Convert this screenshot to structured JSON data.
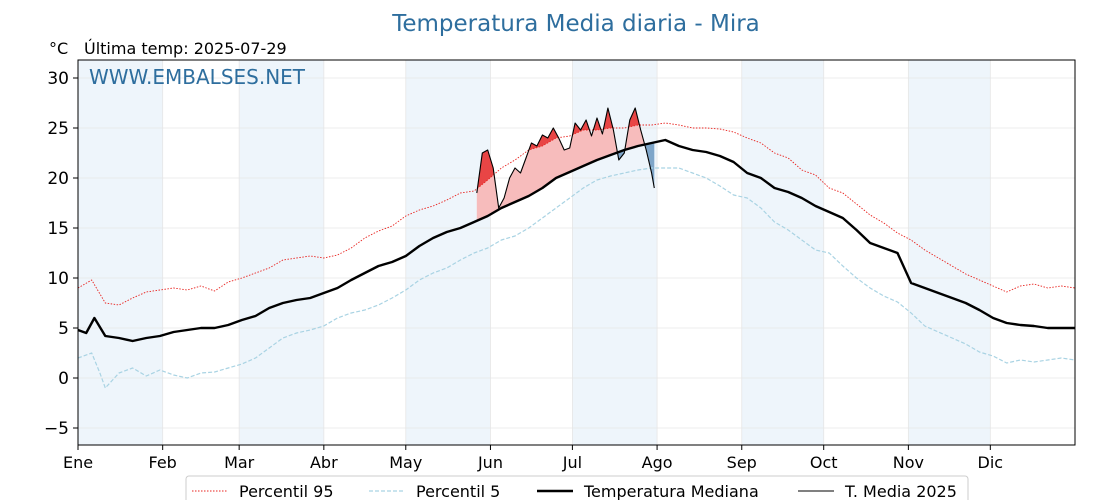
{
  "chart_data": {
    "type": "line",
    "title": "Temperatura Media diaria - Mira",
    "unit_label": "°C",
    "last_temp_label": "Última temp: 2025-07-29",
    "watermark": "WWW.EMBALSES.NET",
    "xlim": [
      0,
      365
    ],
    "ylim": [
      -6.7,
      31.8
    ],
    "grid": true,
    "legend_position": "bottom-center",
    "y_ticks": [
      {
        "value": -5,
        "label": "−5"
      },
      {
        "value": 0,
        "label": "0"
      },
      {
        "value": 5,
        "label": "5"
      },
      {
        "value": 10,
        "label": "10"
      },
      {
        "value": 15,
        "label": "15"
      },
      {
        "value": 20,
        "label": "20"
      },
      {
        "value": 25,
        "label": "25"
      },
      {
        "value": 30,
        "label": "30"
      }
    ],
    "months": [
      {
        "label": "Ene",
        "day": 0
      },
      {
        "label": "Feb",
        "day": 31
      },
      {
        "label": "Mar",
        "day": 59
      },
      {
        "label": "Abr",
        "day": 90
      },
      {
        "label": "May",
        "day": 120
      },
      {
        "label": "Jun",
        "day": 151
      },
      {
        "label": "Jul",
        "day": 181
      },
      {
        "label": "Ago",
        "day": 212
      },
      {
        "label": "Sep",
        "day": 243
      },
      {
        "label": "Oct",
        "day": 273
      },
      {
        "label": "Nov",
        "day": 304
      },
      {
        "label": "Dic",
        "day": 334
      }
    ],
    "shaded_months": [
      [
        0,
        31
      ],
      [
        59,
        90
      ],
      [
        120,
        151
      ],
      [
        181,
        212
      ],
      [
        243,
        273
      ],
      [
        304,
        334
      ]
    ],
    "colors": {
      "p95": "#e8231f",
      "p5": "#a9d3e3",
      "median": "#000000",
      "current": "#000000",
      "above_fill": "#f7bcbc",
      "above_strong": "#e84545",
      "below_fill": "#7fa6c9",
      "shade": "#eef5fb",
      "title": "#2e6e9e"
    },
    "series": [
      {
        "name": "Percentil 95",
        "style": "dotted",
        "points": [
          [
            0,
            9
          ],
          [
            5,
            9.8
          ],
          [
            10,
            7.5
          ],
          [
            15,
            7.3
          ],
          [
            20,
            8
          ],
          [
            25,
            8.6
          ],
          [
            30,
            8.8
          ],
          [
            35,
            9
          ],
          [
            40,
            8.8
          ],
          [
            45,
            9.2
          ],
          [
            50,
            8.7
          ],
          [
            55,
            9.6
          ],
          [
            60,
            10
          ],
          [
            65,
            10.5
          ],
          [
            70,
            11
          ],
          [
            75,
            11.8
          ],
          [
            80,
            12
          ],
          [
            85,
            12.2
          ],
          [
            90,
            12
          ],
          [
            95,
            12.3
          ],
          [
            100,
            13
          ],
          [
            105,
            14
          ],
          [
            110,
            14.7
          ],
          [
            115,
            15.2
          ],
          [
            120,
            16.2
          ],
          [
            125,
            16.8
          ],
          [
            130,
            17.2
          ],
          [
            135,
            17.8
          ],
          [
            140,
            18.5
          ],
          [
            145,
            18.7
          ],
          [
            150,
            19.8
          ],
          [
            155,
            21
          ],
          [
            160,
            21.8
          ],
          [
            165,
            22.8
          ],
          [
            170,
            23.2
          ],
          [
            175,
            24
          ],
          [
            180,
            24.2
          ],
          [
            185,
            24.8
          ],
          [
            190,
            24.8
          ],
          [
            195,
            25
          ],
          [
            200,
            25
          ],
          [
            205,
            25.3
          ],
          [
            210,
            25.3
          ],
          [
            215,
            25.5
          ],
          [
            220,
            25.3
          ],
          [
            225,
            25
          ],
          [
            230,
            25
          ],
          [
            235,
            24.9
          ],
          [
            240,
            24.6
          ],
          [
            245,
            24
          ],
          [
            250,
            23.5
          ],
          [
            255,
            22.5
          ],
          [
            260,
            22
          ],
          [
            265,
            20.8
          ],
          [
            270,
            20.3
          ],
          [
            275,
            19
          ],
          [
            280,
            18.5
          ],
          [
            285,
            17.4
          ],
          [
            290,
            16.3
          ],
          [
            295,
            15.5
          ],
          [
            300,
            14.5
          ],
          [
            305,
            13.8
          ],
          [
            310,
            12.8
          ],
          [
            315,
            12
          ],
          [
            320,
            11.2
          ],
          [
            325,
            10.4
          ],
          [
            330,
            9.8
          ],
          [
            335,
            9.2
          ],
          [
            340,
            8.6
          ],
          [
            345,
            9.2
          ],
          [
            350,
            9.4
          ],
          [
            355,
            9
          ],
          [
            360,
            9.2
          ],
          [
            365,
            9
          ]
        ]
      },
      {
        "name": "Percentil 5",
        "style": "dashed",
        "points": [
          [
            0,
            2
          ],
          [
            5,
            2.5
          ],
          [
            8,
            0.5
          ],
          [
            10,
            -1
          ],
          [
            15,
            0.5
          ],
          [
            20,
            1
          ],
          [
            25,
            0.2
          ],
          [
            30,
            0.8
          ],
          [
            35,
            0.3
          ],
          [
            40,
            0
          ],
          [
            45,
            0.5
          ],
          [
            50,
            0.6
          ],
          [
            55,
            1
          ],
          [
            60,
            1.4
          ],
          [
            65,
            2
          ],
          [
            70,
            3
          ],
          [
            75,
            4
          ],
          [
            80,
            4.5
          ],
          [
            85,
            4.8
          ],
          [
            90,
            5.2
          ],
          [
            95,
            6
          ],
          [
            100,
            6.5
          ],
          [
            105,
            6.8
          ],
          [
            110,
            7.3
          ],
          [
            115,
            8
          ],
          [
            120,
            8.8
          ],
          [
            125,
            9.8
          ],
          [
            130,
            10.5
          ],
          [
            135,
            11
          ],
          [
            140,
            11.8
          ],
          [
            145,
            12.5
          ],
          [
            150,
            13
          ],
          [
            155,
            13.8
          ],
          [
            160,
            14.2
          ],
          [
            165,
            15
          ],
          [
            170,
            16
          ],
          [
            175,
            17
          ],
          [
            180,
            18
          ],
          [
            185,
            19
          ],
          [
            190,
            19.8
          ],
          [
            195,
            20.2
          ],
          [
            200,
            20.5
          ],
          [
            205,
            20.8
          ],
          [
            210,
            21
          ],
          [
            215,
            21
          ],
          [
            220,
            21
          ],
          [
            225,
            20.5
          ],
          [
            230,
            20
          ],
          [
            235,
            19.2
          ],
          [
            240,
            18.3
          ],
          [
            245,
            18
          ],
          [
            250,
            17
          ],
          [
            255,
            15.6
          ],
          [
            260,
            14.8
          ],
          [
            265,
            13.8
          ],
          [
            270,
            12.8
          ],
          [
            275,
            12.5
          ],
          [
            280,
            11.2
          ],
          [
            285,
            10
          ],
          [
            290,
            9
          ],
          [
            295,
            8.2
          ],
          [
            300,
            7.6
          ],
          [
            305,
            6.5
          ],
          [
            310,
            5.2
          ],
          [
            315,
            4.6
          ],
          [
            320,
            4
          ],
          [
            325,
            3.4
          ],
          [
            330,
            2.6
          ],
          [
            335,
            2.2
          ],
          [
            340,
            1.5
          ],
          [
            345,
            1.8
          ],
          [
            350,
            1.6
          ],
          [
            355,
            1.8
          ],
          [
            360,
            2
          ],
          [
            365,
            1.8
          ]
        ]
      },
      {
        "name": "Temperatura Mediana",
        "style": "solid-thick",
        "points": [
          [
            0,
            4.8
          ],
          [
            3,
            4.5
          ],
          [
            6,
            6
          ],
          [
            10,
            4.2
          ],
          [
            15,
            4
          ],
          [
            20,
            3.7
          ],
          [
            25,
            4
          ],
          [
            30,
            4.2
          ],
          [
            35,
            4.6
          ],
          [
            40,
            4.8
          ],
          [
            45,
            5
          ],
          [
            50,
            5
          ],
          [
            55,
            5.3
          ],
          [
            60,
            5.8
          ],
          [
            65,
            6.2
          ],
          [
            70,
            7
          ],
          [
            75,
            7.5
          ],
          [
            80,
            7.8
          ],
          [
            85,
            8
          ],
          [
            90,
            8.5
          ],
          [
            95,
            9
          ],
          [
            100,
            9.8
          ],
          [
            105,
            10.5
          ],
          [
            110,
            11.2
          ],
          [
            115,
            11.6
          ],
          [
            120,
            12.2
          ],
          [
            125,
            13.2
          ],
          [
            130,
            14
          ],
          [
            135,
            14.6
          ],
          [
            140,
            15
          ],
          [
            145,
            15.6
          ],
          [
            150,
            16.2
          ],
          [
            155,
            17
          ],
          [
            160,
            17.6
          ],
          [
            165,
            18.2
          ],
          [
            170,
            19
          ],
          [
            175,
            20
          ],
          [
            180,
            20.6
          ],
          [
            185,
            21.2
          ],
          [
            190,
            21.8
          ],
          [
            195,
            22.3
          ],
          [
            200,
            22.8
          ],
          [
            205,
            23.2
          ],
          [
            210,
            23.5
          ],
          [
            215,
            23.8
          ],
          [
            220,
            23.2
          ],
          [
            225,
            22.8
          ],
          [
            230,
            22.6
          ],
          [
            235,
            22.2
          ],
          [
            240,
            21.6
          ],
          [
            245,
            20.5
          ],
          [
            250,
            20
          ],
          [
            255,
            19
          ],
          [
            260,
            18.6
          ],
          [
            265,
            18
          ],
          [
            270,
            17.2
          ],
          [
            275,
            16.6
          ],
          [
            280,
            16
          ],
          [
            285,
            14.8
          ],
          [
            290,
            13.5
          ],
          [
            295,
            13
          ],
          [
            300,
            12.5
          ],
          [
            305,
            9.5
          ],
          [
            310,
            9
          ],
          [
            315,
            8.5
          ],
          [
            320,
            8
          ],
          [
            325,
            7.5
          ],
          [
            330,
            6.8
          ],
          [
            335,
            6
          ],
          [
            340,
            5.5
          ],
          [
            345,
            5.3
          ],
          [
            350,
            5.2
          ],
          [
            355,
            5
          ],
          [
            360,
            5
          ],
          [
            365,
            5
          ]
        ]
      },
      {
        "name": "T. Media 2025",
        "style": "solid-thin",
        "points": [
          [
            146,
            18.5
          ],
          [
            148,
            22.5
          ],
          [
            150,
            22.8
          ],
          [
            152,
            21
          ],
          [
            154,
            17
          ],
          [
            156,
            18
          ],
          [
            158,
            20
          ],
          [
            160,
            21
          ],
          [
            162,
            20.5
          ],
          [
            164,
            22
          ],
          [
            166,
            23.5
          ],
          [
            168,
            23.2
          ],
          [
            170,
            24.3
          ],
          [
            172,
            24
          ],
          [
            174,
            25
          ],
          [
            176,
            24
          ],
          [
            178,
            22.8
          ],
          [
            180,
            23
          ],
          [
            182,
            25.5
          ],
          [
            184,
            24.8
          ],
          [
            186,
            25.8
          ],
          [
            188,
            24.2
          ],
          [
            190,
            26
          ],
          [
            192,
            24.4
          ],
          [
            194,
            27
          ],
          [
            196,
            24.8
          ],
          [
            198,
            21.8
          ],
          [
            200,
            22.5
          ],
          [
            202,
            25.8
          ],
          [
            204,
            27
          ],
          [
            206,
            24.8
          ],
          [
            208,
            22.8
          ],
          [
            210,
            20.5
          ],
          [
            211,
            19
          ]
        ]
      }
    ]
  }
}
